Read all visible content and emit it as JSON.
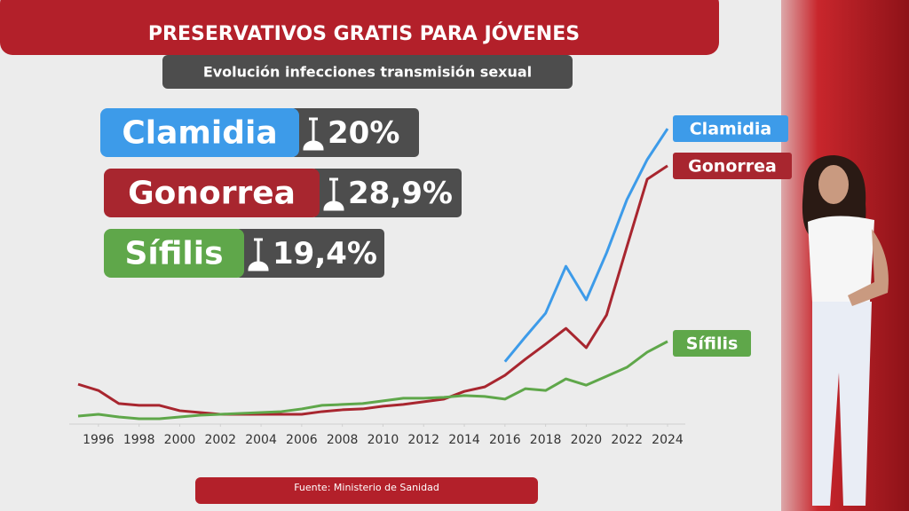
{
  "chart_data": {
    "type": "line",
    "title": "PRESERVATIVOS GRATIS PARA JÓVENES",
    "subtitle": "Evolución infecciones transmisión sexual",
    "source": "Fuente: Ministerio de Sanidad",
    "x": [
      1995,
      1996,
      1997,
      1998,
      1999,
      2000,
      2001,
      2002,
      2003,
      2004,
      2005,
      2006,
      2007,
      2008,
      2009,
      2010,
      2011,
      2012,
      2013,
      2014,
      2015,
      2016,
      2017,
      2018,
      2019,
      2020,
      2021,
      2022,
      2023,
      2024
    ],
    "xlim": [
      1995,
      2024
    ],
    "xticks": [
      1996,
      1998,
      2000,
      2002,
      2004,
      2006,
      2008,
      2010,
      2012,
      2014,
      2016,
      2018,
      2020,
      2022,
      2024
    ],
    "ylim": [
      0,
      100
    ],
    "series": [
      {
        "name": "Clamidia",
        "color": "#3d9be9",
        "change": "20%",
        "values": [
          null,
          null,
          null,
          null,
          null,
          null,
          null,
          null,
          null,
          null,
          null,
          null,
          null,
          null,
          null,
          null,
          null,
          null,
          null,
          null,
          null,
          20.1,
          28.4,
          36.4,
          52.2,
          40.9,
          56.7,
          74.6,
          88.1,
          98.5
        ]
      },
      {
        "name": "Gonorrea",
        "color": "#a8262f",
        "change": "28,9%",
        "values": [
          12.5,
          10.4,
          6.0,
          5.4,
          5.4,
          3.6,
          3.0,
          2.4,
          2.4,
          2.4,
          2.4,
          2.4,
          3.3,
          3.9,
          4.2,
          5.1,
          5.7,
          6.6,
          7.5,
          10.1,
          11.6,
          15.5,
          20.9,
          26.0,
          31.3,
          24.8,
          35.8,
          58.8,
          81.5,
          86.0
        ]
      },
      {
        "name": "Sífilis",
        "color": "#5fa74a",
        "change": "19,4%",
        "values": [
          1.8,
          2.4,
          1.5,
          0.9,
          0.9,
          1.5,
          2.1,
          2.4,
          2.7,
          3.0,
          3.3,
          4.2,
          5.4,
          5.7,
          6.0,
          6.9,
          7.8,
          7.8,
          8.1,
          8.7,
          8.4,
          7.5,
          11.0,
          10.4,
          14.3,
          12.2,
          15.2,
          18.2,
          23.3,
          26.9
        ]
      }
    ]
  }
}
